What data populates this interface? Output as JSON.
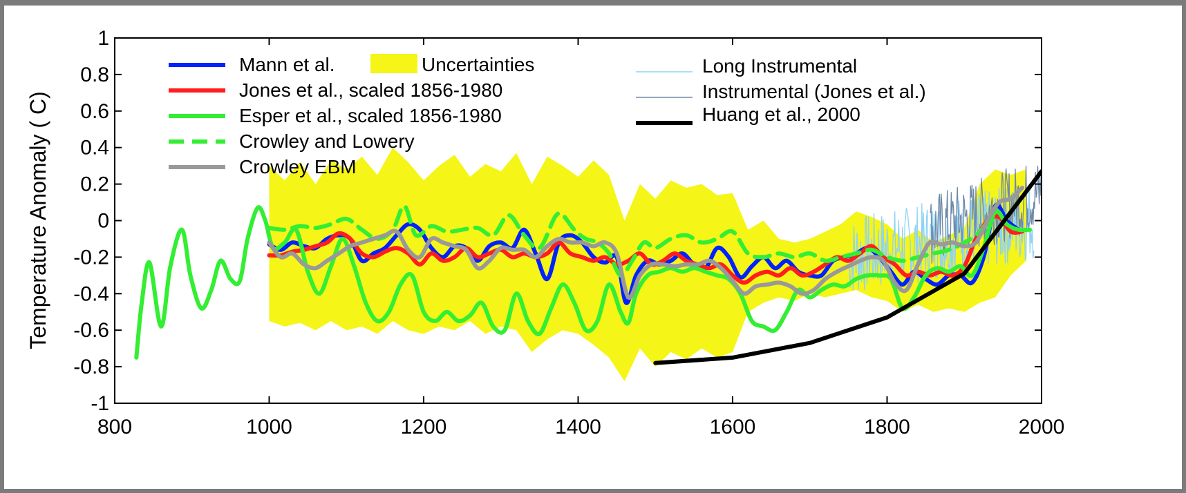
{
  "chart_data": {
    "type": "line",
    "title": "",
    "xlabel": "",
    "ylabel": "Temperature Anomaly ( C)",
    "xlim": [
      800,
      2000
    ],
    "ylim": [
      -1,
      1
    ],
    "x_ticks": [
      "800",
      "1000",
      "1200",
      "1400",
      "1600",
      "1800",
      "2000"
    ],
    "y_ticks": [
      "1",
      "0.8",
      "0.6",
      "0.4",
      "0.2",
      "0",
      "-0.2",
      "-0.4",
      "-0.6",
      "-0.8",
      "-1"
    ],
    "grid": false,
    "legend_left": [
      {
        "label": "Mann et al.",
        "color": "#0022ff",
        "style": "solid"
      },
      {
        "label": "Jones et al., scaled 1856-1980",
        "color": "#ff1e1e",
        "style": "solid"
      },
      {
        "label": "Esper et al., scaled 1856-1980",
        "color": "#33ee33",
        "style": "solid"
      },
      {
        "label": "Crowley and Lowery",
        "color": "#33ee33",
        "style": "dashed"
      },
      {
        "label": "Crowley EBM",
        "color": "#999999",
        "style": "solid"
      }
    ],
    "legend_uncertainty": {
      "label": "Uncertainties",
      "color": "#f5f518"
    },
    "legend_right": [
      {
        "label": "Long Instrumental",
        "color": "#8fd3f4",
        "style": "thin"
      },
      {
        "label": "Instrumental (Jones et al.)",
        "color": "#6f8aa8",
        "style": "thin"
      },
      {
        "label": "Huang et al., 2000",
        "color": "#000000",
        "style": "thick"
      }
    ],
    "uncertainty": {
      "x": [
        1000,
        1020,
        1040,
        1060,
        1080,
        1100,
        1120,
        1140,
        1160,
        1180,
        1200,
        1220,
        1240,
        1260,
        1280,
        1300,
        1320,
        1340,
        1360,
        1380,
        1400,
        1420,
        1440,
        1460,
        1480,
        1500,
        1520,
        1540,
        1560,
        1580,
        1600,
        1620,
        1640,
        1660,
        1680,
        1700,
        1720,
        1740,
        1760,
        1780,
        1800,
        1820,
        1840,
        1860,
        1880,
        1900,
        1920,
        1940,
        1960,
        1980
      ],
      "upper": [
        0.3,
        0.22,
        0.32,
        0.2,
        0.33,
        0.28,
        0.35,
        0.25,
        0.4,
        0.32,
        0.22,
        0.3,
        0.36,
        0.24,
        0.31,
        0.27,
        0.37,
        0.2,
        0.35,
        0.3,
        0.24,
        0.33,
        0.25,
        0.0,
        0.2,
        0.12,
        0.22,
        0.18,
        0.2,
        0.14,
        0.15,
        -0.05,
        0.0,
        -0.1,
        -0.12,
        -0.1,
        -0.06,
        -0.02,
        0.05,
        0.02,
        -0.02,
        -0.1,
        -0.05,
        -0.12,
        -0.08,
        -0.04,
        0.2,
        0.28,
        0.25,
        0.28
      ],
      "lower": [
        -0.55,
        -0.58,
        -0.56,
        -0.6,
        -0.55,
        -0.6,
        -0.58,
        -0.62,
        -0.55,
        -0.6,
        -0.62,
        -0.58,
        -0.6,
        -0.55,
        -0.62,
        -0.58,
        -0.6,
        -0.72,
        -0.65,
        -0.6,
        -0.62,
        -0.68,
        -0.75,
        -0.88,
        -0.7,
        -0.8,
        -0.72,
        -0.76,
        -0.7,
        -0.75,
        -0.72,
        -0.5,
        -0.45,
        -0.42,
        -0.44,
        -0.4,
        -0.42,
        -0.4,
        -0.38,
        -0.42,
        -0.44,
        -0.5,
        -0.46,
        -0.5,
        -0.48,
        -0.5,
        -0.45,
        -0.42,
        -0.3,
        -0.22
      ]
    },
    "series": [
      {
        "name": "Mann et al.",
        "color": "#0022ff",
        "width": 6,
        "dash": "",
        "x": [
          1000,
          1015,
          1030,
          1045,
          1060,
          1075,
          1090,
          1105,
          1120,
          1135,
          1150,
          1165,
          1180,
          1195,
          1210,
          1225,
          1240,
          1255,
          1270,
          1285,
          1300,
          1315,
          1330,
          1345,
          1360,
          1375,
          1390,
          1405,
          1420,
          1435,
          1450,
          1462,
          1475,
          1490,
          1505,
          1520,
          1535,
          1550,
          1565,
          1580,
          1595,
          1610,
          1625,
          1640,
          1655,
          1670,
          1685,
          1700,
          1715,
          1730,
          1745,
          1760,
          1775,
          1790,
          1805,
          1820,
          1835,
          1850,
          1865,
          1880,
          1895,
          1910,
          1925,
          1940,
          1955,
          1970
        ],
        "y": [
          -0.13,
          -0.16,
          -0.12,
          -0.14,
          -0.15,
          -0.1,
          -0.08,
          -0.1,
          -0.22,
          -0.18,
          -0.15,
          -0.08,
          -0.02,
          -0.05,
          -0.15,
          -0.2,
          -0.14,
          -0.15,
          -0.22,
          -0.14,
          -0.12,
          -0.15,
          -0.05,
          -0.18,
          -0.32,
          -0.12,
          -0.08,
          -0.12,
          -0.2,
          -0.23,
          -0.2,
          -0.45,
          -0.3,
          -0.22,
          -0.24,
          -0.22,
          -0.18,
          -0.24,
          -0.26,
          -0.15,
          -0.2,
          -0.31,
          -0.25,
          -0.2,
          -0.26,
          -0.22,
          -0.28,
          -0.3,
          -0.3,
          -0.22,
          -0.2,
          -0.18,
          -0.15,
          -0.2,
          -0.28,
          -0.35,
          -0.28,
          -0.32,
          -0.35,
          -0.3,
          -0.3,
          -0.34,
          -0.2,
          0.08,
          0.0,
          -0.05
        ]
      },
      {
        "name": "Jones et al., scaled 1856-1980",
        "color": "#ff1e1e",
        "width": 6,
        "dash": "",
        "x": [
          1000,
          1015,
          1030,
          1045,
          1060,
          1075,
          1090,
          1105,
          1120,
          1135,
          1150,
          1165,
          1180,
          1195,
          1210,
          1225,
          1240,
          1255,
          1270,
          1285,
          1300,
          1315,
          1330,
          1345,
          1360,
          1375,
          1390,
          1405,
          1420,
          1435,
          1450,
          1465,
          1480,
          1495,
          1510,
          1525,
          1540,
          1555,
          1570,
          1585,
          1600,
          1615,
          1630,
          1645,
          1660,
          1675,
          1690,
          1705,
          1720,
          1735,
          1750,
          1765,
          1780,
          1795,
          1810,
          1825,
          1840,
          1855,
          1870,
          1885,
          1900,
          1915,
          1930,
          1945,
          1960,
          1975
        ],
        "y": [
          -0.19,
          -0.19,
          -0.17,
          -0.16,
          -0.14,
          -0.12,
          -0.07,
          -0.1,
          -0.18,
          -0.2,
          -0.17,
          -0.15,
          -0.18,
          -0.24,
          -0.18,
          -0.22,
          -0.2,
          -0.15,
          -0.2,
          -0.18,
          -0.16,
          -0.2,
          -0.18,
          -0.2,
          -0.18,
          -0.12,
          -0.18,
          -0.2,
          -0.22,
          -0.2,
          -0.24,
          -0.22,
          -0.18,
          -0.24,
          -0.22,
          -0.18,
          -0.22,
          -0.24,
          -0.26,
          -0.24,
          -0.3,
          -0.34,
          -0.3,
          -0.28,
          -0.3,
          -0.26,
          -0.3,
          -0.28,
          -0.24,
          -0.2,
          -0.22,
          -0.18,
          -0.14,
          -0.2,
          -0.24,
          -0.3,
          -0.28,
          -0.3,
          -0.28,
          -0.3,
          -0.25,
          -0.1,
          0.0,
          0.02,
          -0.06,
          -0.06
        ]
      },
      {
        "name": "Esper et al., scaled 1856-1980",
        "color": "#33ee33",
        "width": 6,
        "dash": "",
        "x": [
          828,
          835,
          845,
          860,
          872,
          887,
          898,
          912,
          925,
          937,
          950,
          962,
          972,
          985,
          995,
          1005,
          1020,
          1035,
          1050,
          1065,
          1080,
          1095,
          1110,
          1125,
          1140,
          1155,
          1170,
          1185,
          1200,
          1215,
          1230,
          1245,
          1260,
          1275,
          1290,
          1305,
          1320,
          1335,
          1350,
          1365,
          1380,
          1395,
          1410,
          1425,
          1440,
          1455,
          1465,
          1475,
          1490,
          1505,
          1520,
          1535,
          1550,
          1565,
          1580,
          1595,
          1610,
          1625,
          1640,
          1655,
          1670,
          1685,
          1700,
          1715,
          1730,
          1745,
          1760,
          1775,
          1790,
          1805,
          1820,
          1835,
          1850,
          1865,
          1880,
          1895,
          1910,
          1925,
          1940,
          1955,
          1970,
          1985
        ],
        "y": [
          -0.75,
          -0.45,
          -0.23,
          -0.58,
          -0.25,
          -0.05,
          -0.3,
          -0.48,
          -0.38,
          -0.22,
          -0.32,
          -0.33,
          -0.1,
          0.07,
          0.0,
          -0.15,
          -0.12,
          -0.05,
          -0.28,
          -0.4,
          -0.25,
          -0.1,
          -0.25,
          -0.45,
          -0.55,
          -0.5,
          -0.35,
          -0.3,
          -0.5,
          -0.55,
          -0.5,
          -0.55,
          -0.52,
          -0.45,
          -0.58,
          -0.6,
          -0.4,
          -0.55,
          -0.62,
          -0.48,
          -0.35,
          -0.45,
          -0.6,
          -0.55,
          -0.35,
          -0.5,
          -0.56,
          -0.4,
          -0.3,
          -0.28,
          -0.26,
          -0.28,
          -0.26,
          -0.28,
          -0.3,
          -0.32,
          -0.4,
          -0.55,
          -0.58,
          -0.6,
          -0.5,
          -0.38,
          -0.42,
          -0.38,
          -0.35,
          -0.36,
          -0.32,
          -0.3,
          -0.3,
          -0.32,
          -0.48,
          -0.42,
          -0.3,
          -0.26,
          -0.28,
          -0.25,
          -0.3,
          -0.15,
          0.05,
          -0.02,
          -0.05,
          -0.05
        ]
      },
      {
        "name": "Crowley and Lowery",
        "color": "#33ee33",
        "width": 6,
        "dash": "22,12",
        "x": [
          1000,
          1020,
          1040,
          1060,
          1080,
          1100,
          1120,
          1140,
          1160,
          1175,
          1190,
          1210,
          1230,
          1250,
          1270,
          1290,
          1310,
          1330,
          1350,
          1370,
          1380,
          1395,
          1410,
          1425,
          1440,
          1455,
          1470,
          1485,
          1500,
          1520,
          1540,
          1560,
          1580,
          1600,
          1620,
          1640,
          1660,
          1680,
          1700,
          1720,
          1740,
          1760,
          1780,
          1800,
          1820,
          1840,
          1860,
          1880,
          1900,
          1920,
          1940
        ],
        "y": [
          -0.04,
          -0.05,
          -0.03,
          -0.04,
          -0.02,
          0.01,
          -0.05,
          -0.1,
          -0.05,
          0.08,
          -0.08,
          -0.03,
          -0.06,
          -0.05,
          -0.04,
          -0.08,
          0.03,
          -0.08,
          -0.15,
          0.02,
          0.03,
          -0.05,
          -0.1,
          -0.12,
          -0.18,
          -0.3,
          -0.22,
          -0.12,
          -0.15,
          -0.1,
          -0.08,
          -0.12,
          -0.1,
          -0.06,
          -0.18,
          -0.2,
          -0.18,
          -0.2,
          -0.18,
          -0.22,
          -0.2,
          -0.18,
          -0.16,
          -0.2,
          -0.22,
          -0.2,
          -0.18,
          -0.16,
          -0.12,
          -0.06,
          0.06
        ]
      },
      {
        "name": "Crowley EBM",
        "color": "#999999",
        "width": 6,
        "dash": "",
        "x": [
          1000,
          1015,
          1030,
          1045,
          1060,
          1075,
          1090,
          1105,
          1120,
          1135,
          1150,
          1165,
          1180,
          1195,
          1210,
          1225,
          1240,
          1255,
          1270,
          1285,
          1300,
          1315,
          1330,
          1345,
          1360,
          1375,
          1390,
          1405,
          1420,
          1435,
          1450,
          1465,
          1480,
          1495,
          1510,
          1525,
          1540,
          1555,
          1570,
          1585,
          1600,
          1615,
          1630,
          1645,
          1660,
          1675,
          1690,
          1705,
          1720,
          1735,
          1750,
          1765,
          1780,
          1795,
          1810,
          1825,
          1840,
          1855,
          1870,
          1885,
          1900,
          1915,
          1930,
          1945,
          1960,
          1975
        ],
        "y": [
          -0.12,
          -0.2,
          -0.18,
          -0.24,
          -0.26,
          -0.22,
          -0.18,
          -0.14,
          -0.12,
          -0.1,
          -0.08,
          -0.06,
          -0.16,
          -0.2,
          -0.1,
          -0.12,
          -0.14,
          -0.16,
          -0.26,
          -0.22,
          -0.15,
          -0.16,
          -0.16,
          -0.2,
          -0.14,
          -0.1,
          -0.12,
          -0.12,
          -0.14,
          -0.12,
          -0.18,
          -0.42,
          -0.3,
          -0.24,
          -0.24,
          -0.25,
          -0.24,
          -0.24,
          -0.22,
          -0.26,
          -0.33,
          -0.4,
          -0.36,
          -0.35,
          -0.34,
          -0.36,
          -0.4,
          -0.38,
          -0.32,
          -0.28,
          -0.25,
          -0.22,
          -0.2,
          -0.22,
          -0.34,
          -0.38,
          -0.24,
          -0.12,
          -0.13,
          -0.12,
          -0.14,
          -0.12,
          0.0,
          0.1,
          0.12,
          0.18
        ]
      },
      {
        "name": "Huang et al., 2000",
        "color": "#000000",
        "width": 6,
        "dash": "",
        "x": [
          1500,
          1600,
          1700,
          1800,
          1900,
          2000
        ],
        "y": [
          -0.78,
          -0.75,
          -0.67,
          -0.53,
          -0.29,
          0.27
        ]
      }
    ],
    "instrumental": [
      {
        "name": "Long Instrumental",
        "color": "#8fd3f4",
        "x_start": 1750,
        "x_end": 1990,
        "center": -0.2,
        "spread": 0.22
      },
      {
        "name": "Instrumental (Jones et al.)",
        "color": "#6f8aa8",
        "x_start": 1856,
        "x_end": 1999,
        "center": -0.05,
        "spread": 0.2
      }
    ]
  }
}
